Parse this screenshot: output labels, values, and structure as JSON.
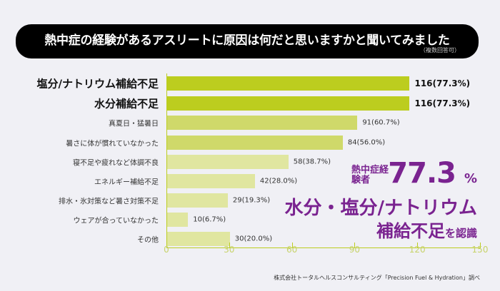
{
  "title": "熱中症の経験があるアスリートに原因は何だと思いますかと聞いてみました",
  "note": "（複数回答可）",
  "callout": {
    "prefix": "熱中症経験者",
    "value": "77.3",
    "unit": "%",
    "line2": "水分・塩分/ナトリウム",
    "line3_main": "補給不足",
    "line3_suffix": "を認識"
  },
  "source": "株式会社トータルヘルスコンサルティング「Precision Fuel & Hydration」調べ",
  "chart_data": {
    "type": "bar",
    "orientation": "horizontal",
    "categories": [
      "塩分/ナトリウム補給不足",
      "水分補給不足",
      "真夏日・猛暑日",
      "暑さに体が慣れていなかった",
      "寝不足や疲れなど体調不良",
      "エネルギー補給不足",
      "排水・氷対策など暑さ対策不足",
      "ウェアが合っていなかった",
      "その他"
    ],
    "values": [
      116,
      116,
      91,
      84,
      58,
      42,
      29,
      10,
      30
    ],
    "data_labels": [
      "116(77.3%)",
      "116(77.3%)",
      "91(60.7%)",
      "84(56.0%)",
      "58(38.7%)",
      "42(28.0%)",
      "29(19.3%)",
      "10(6.7%)",
      "30(20.0%)"
    ],
    "colors": [
      "#bccd1f",
      "#bccd1f",
      "#cfd96a",
      "#cfd96a",
      "#e0e6a0",
      "#e0e6a0",
      "#e0e6a0",
      "#e0e6a0",
      "#e0e6a0"
    ],
    "xlim": [
      0,
      150
    ],
    "xticks": [
      "0",
      "30",
      "60",
      "90",
      "120",
      "150"
    ],
    "grid": false
  }
}
